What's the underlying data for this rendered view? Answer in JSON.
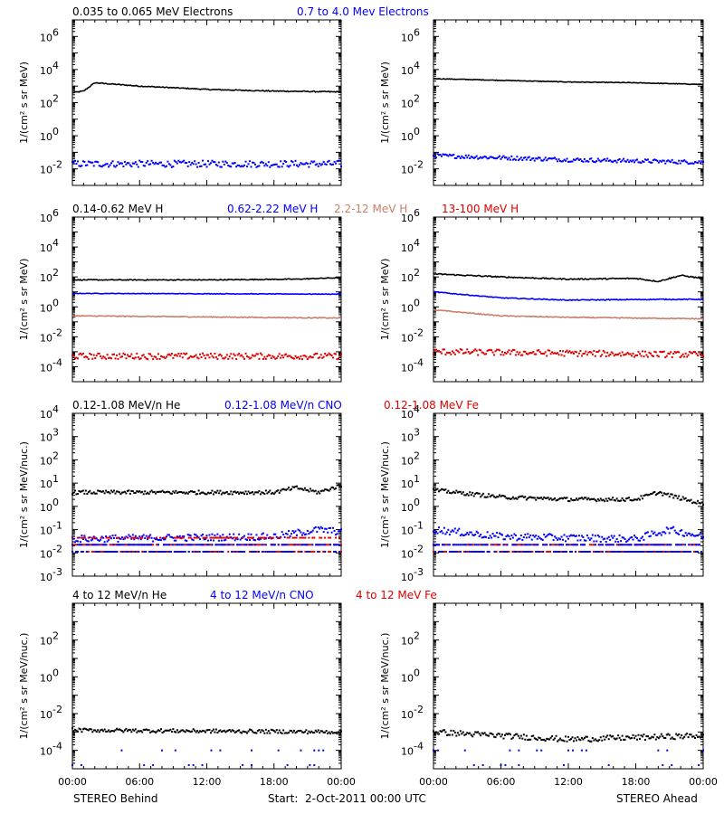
{
  "footer": {
    "left": "STEREO Behind",
    "center": "Start:  2-Oct-2011 00:00 UTC",
    "right": "STEREO Ahead"
  },
  "x_ticks": [
    "00:00",
    "06:00",
    "12:00",
    "18:00",
    "00:00"
  ],
  "row_headers": [
    [
      {
        "text": "0.035 to 0.065 MeV Electrons",
        "color": "#000000"
      },
      {
        "text": "0.7 to 4.0 Mev Electrons",
        "color": "#0000ff"
      }
    ],
    [
      {
        "text": "0.14-0.62 MeV H",
        "color": "#000000"
      },
      {
        "text": "0.62-2.22 MeV H",
        "color": "#0000ff"
      },
      {
        "text": "2.2-12 MeV H",
        "color": "#c8806a"
      },
      {
        "text": "13-100 MeV H",
        "color": "#dd0000"
      }
    ],
    [
      {
        "text": "0.12-1.08 MeV/n He",
        "color": "#000000"
      },
      {
        "text": "0.12-1.08 MeV/n CNO",
        "color": "#0000ff"
      },
      {
        "text": "0.12-1.08 MeV Fe",
        "color": "#dd0000"
      }
    ],
    [
      {
        "text": "4 to 12 MeV/n He",
        "color": "#000000"
      },
      {
        "text": "4 to 12 MeV/n CNO",
        "color": "#0000ff"
      },
      {
        "text": "4 to 12 MeV Fe",
        "color": "#dd0000"
      }
    ]
  ],
  "chart_data": [
    {
      "type": "scatter",
      "panel": "electrons-behind",
      "log_y": true,
      "ylabel": "1/(cm² s sr MeV)",
      "ylim_exp": [
        -3,
        7
      ],
      "yticks": [
        {
          "exp": -2,
          "label": "10",
          "sup": "-2"
        },
        {
          "exp": 0,
          "label": "10",
          "sup": "0"
        },
        {
          "exp": 2,
          "label": "10",
          "sup": "2"
        },
        {
          "exp": 4,
          "label": "10",
          "sup": "4"
        },
        {
          "exp": 6,
          "label": "10",
          "sup": "6"
        }
      ],
      "x_hours": [
        0,
        24
      ],
      "series": [
        {
          "color": "#000000",
          "style": "line",
          "profile": [
            [
              0,
              2.6
            ],
            [
              1,
              2.7
            ],
            [
              2,
              3.2
            ],
            [
              3,
              3.15
            ],
            [
              6,
              3.0
            ],
            [
              12,
              2.8
            ],
            [
              18,
              2.7
            ],
            [
              24,
              2.65
            ]
          ],
          "jitter": 0.03
        },
        {
          "color": "#0000ff",
          "style": "dots",
          "profile": [
            [
              0,
              -1.7
            ],
            [
              24,
              -1.7
            ]
          ],
          "jitter": 0.2
        }
      ]
    },
    {
      "type": "scatter",
      "panel": "electrons-ahead",
      "log_y": true,
      "ylabel": "1/(cm² s sr MeV)",
      "ylim_exp": [
        -3,
        7
      ],
      "yticks": [
        {
          "exp": -2,
          "label": "10",
          "sup": "-2"
        },
        {
          "exp": 0,
          "label": "10",
          "sup": "0"
        },
        {
          "exp": 2,
          "label": "10",
          "sup": "2"
        },
        {
          "exp": 4,
          "label": "10",
          "sup": "4"
        },
        {
          "exp": 6,
          "label": "10",
          "sup": "6"
        }
      ],
      "x_hours": [
        0,
        24
      ],
      "series": [
        {
          "color": "#000000",
          "style": "line",
          "profile": [
            [
              0,
              3.45
            ],
            [
              6,
              3.35
            ],
            [
              12,
              3.25
            ],
            [
              18,
              3.2
            ],
            [
              24,
              3.1
            ]
          ],
          "jitter": 0.02
        },
        {
          "color": "#0000ff",
          "style": "dots",
          "profile": [
            [
              0,
              -1.2
            ],
            [
              12,
              -1.45
            ],
            [
              24,
              -1.6
            ]
          ],
          "jitter": 0.12
        }
      ]
    },
    {
      "type": "scatter",
      "panel": "protons-behind",
      "log_y": true,
      "ylabel": "1/(cm² s sr MeV)",
      "ylim_exp": [
        -5,
        6
      ],
      "yticks": [
        {
          "exp": -4,
          "label": "10",
          "sup": "-4"
        },
        {
          "exp": -2,
          "label": "10",
          "sup": "-2"
        },
        {
          "exp": 0,
          "label": "10",
          "sup": "0"
        },
        {
          "exp": 2,
          "label": "10",
          "sup": "2"
        },
        {
          "exp": 4,
          "label": "10",
          "sup": "4"
        },
        {
          "exp": 6,
          "label": "10",
          "sup": "6"
        }
      ],
      "x_hours": [
        0,
        24
      ],
      "series": [
        {
          "color": "#000000",
          "style": "line",
          "profile": [
            [
              0,
              1.8
            ],
            [
              12,
              1.8
            ],
            [
              20,
              1.85
            ],
            [
              24,
              1.95
            ]
          ],
          "jitter": 0.03
        },
        {
          "color": "#0000ff",
          "style": "line",
          "profile": [
            [
              0,
              0.9
            ],
            [
              24,
              0.85
            ]
          ],
          "jitter": 0.02
        },
        {
          "color": "#c8806a",
          "style": "line",
          "profile": [
            [
              0,
              -0.6
            ],
            [
              24,
              -0.75
            ]
          ],
          "jitter": 0.03
        },
        {
          "color": "#dd0000",
          "style": "dots",
          "profile": [
            [
              0,
              -3.3
            ],
            [
              24,
              -3.3
            ]
          ],
          "jitter": 0.2
        }
      ]
    },
    {
      "type": "scatter",
      "panel": "protons-ahead",
      "log_y": true,
      "ylabel": "1/(cm² s sr MeV)",
      "ylim_exp": [
        -5,
        6
      ],
      "yticks": [
        {
          "exp": -4,
          "label": "10",
          "sup": "-4"
        },
        {
          "exp": -2,
          "label": "10",
          "sup": "-2"
        },
        {
          "exp": 0,
          "label": "10",
          "sup": "0"
        },
        {
          "exp": 2,
          "label": "10",
          "sup": "2"
        },
        {
          "exp": 4,
          "label": "10",
          "sup": "4"
        },
        {
          "exp": 6,
          "label": "10",
          "sup": "6"
        }
      ],
      "x_hours": [
        0,
        24
      ],
      "series": [
        {
          "color": "#000000",
          "style": "line",
          "profile": [
            [
              0,
              2.2
            ],
            [
              6,
              2.0
            ],
            [
              12,
              1.85
            ],
            [
              18,
              1.9
            ],
            [
              20,
              1.7
            ],
            [
              22,
              2.1
            ],
            [
              24,
              1.9
            ]
          ],
          "jitter": 0.04
        },
        {
          "color": "#0000ff",
          "style": "line",
          "profile": [
            [
              0,
              1.0
            ],
            [
              6,
              0.6
            ],
            [
              12,
              0.45
            ],
            [
              20,
              0.5
            ],
            [
              24,
              0.5
            ]
          ],
          "jitter": 0.03
        },
        {
          "color": "#c8806a",
          "style": "line",
          "profile": [
            [
              0,
              -0.2
            ],
            [
              6,
              -0.6
            ],
            [
              12,
              -0.7
            ],
            [
              24,
              -0.8
            ]
          ],
          "jitter": 0.03
        },
        {
          "color": "#dd0000",
          "style": "dots",
          "profile": [
            [
              0,
              -3.0
            ],
            [
              24,
              -3.2
            ]
          ],
          "jitter": 0.2
        }
      ]
    },
    {
      "type": "scatter",
      "panel": "ions-low-behind",
      "log_y": true,
      "ylabel": "1/(cm² s sr MeV/nuc.)",
      "ylim_exp": [
        -3,
        4
      ],
      "yticks": [
        {
          "exp": -3,
          "label": "10",
          "sup": "-3"
        },
        {
          "exp": -2,
          "label": "10",
          "sup": "-2"
        },
        {
          "exp": -1,
          "label": "10",
          "sup": "-1"
        },
        {
          "exp": 0,
          "label": "10",
          "sup": "0"
        },
        {
          "exp": 1,
          "label": "10",
          "sup": "1"
        },
        {
          "exp": 2,
          "label": "10",
          "sup": "2"
        },
        {
          "exp": 3,
          "label": "10",
          "sup": "3"
        },
        {
          "exp": 4,
          "label": "10",
          "sup": "4"
        }
      ],
      "x_hours": [
        0,
        24
      ],
      "series": [
        {
          "color": "#000000",
          "style": "dots",
          "profile": [
            [
              0,
              0.6
            ],
            [
              18,
              0.6
            ],
            [
              20,
              0.8
            ],
            [
              22,
              0.6
            ],
            [
              24,
              0.9
            ]
          ],
          "jitter": 0.08
        },
        {
          "color": "#0000ff",
          "style": "dots",
          "profile": [
            [
              0,
              -1.4
            ],
            [
              18,
              -1.3
            ],
            [
              22,
              -1.0
            ],
            [
              24,
              -1.1
            ]
          ],
          "jitter": 0.15
        },
        {
          "color": "#dd0000",
          "style": "band",
          "levels": [
            -1.35,
            -1.65,
            -1.95
          ]
        },
        {
          "color": "#0000ff",
          "style": "band",
          "levels": [
            -1.65,
            -1.95
          ]
        }
      ]
    },
    {
      "type": "scatter",
      "panel": "ions-low-ahead",
      "log_y": true,
      "ylabel": "1/(cm² s sr MeV/nuc.)",
      "ylim_exp": [
        -3,
        4
      ],
      "yticks": [
        {
          "exp": -3,
          "label": "10",
          "sup": "-3"
        },
        {
          "exp": -2,
          "label": "10",
          "sup": "-2"
        },
        {
          "exp": -1,
          "label": "10",
          "sup": "-1"
        },
        {
          "exp": 0,
          "label": "10",
          "sup": "0"
        },
        {
          "exp": 1,
          "label": "10",
          "sup": "1"
        },
        {
          "exp": 2,
          "label": "10",
          "sup": "2"
        },
        {
          "exp": 3,
          "label": "10",
          "sup": "3"
        },
        {
          "exp": 4,
          "label": "10",
          "sup": "4"
        }
      ],
      "x_hours": [
        0,
        24
      ],
      "series": [
        {
          "color": "#000000",
          "style": "dots",
          "profile": [
            [
              0,
              0.7
            ],
            [
              6,
              0.4
            ],
            [
              12,
              0.3
            ],
            [
              18,
              0.3
            ],
            [
              20,
              0.6
            ],
            [
              24,
              0.1
            ]
          ],
          "jitter": 0.08
        },
        {
          "color": "#0000ff",
          "style": "dots",
          "profile": [
            [
              0,
              -1.0
            ],
            [
              6,
              -1.3
            ],
            [
              18,
              -1.4
            ],
            [
              21,
              -1.0
            ],
            [
              24,
              -1.3
            ]
          ],
          "jitter": 0.15
        },
        {
          "color": "#dd0000",
          "style": "band",
          "levels": [
            -1.65,
            -1.95
          ]
        },
        {
          "color": "#0000ff",
          "style": "band",
          "levels": [
            -1.65,
            -1.95
          ]
        }
      ]
    },
    {
      "type": "scatter",
      "panel": "ions-high-behind",
      "log_y": true,
      "ylabel": "1/(cm² s sr MeV/nuc.)",
      "ylim_exp": [
        -5,
        4
      ],
      "yticks": [
        {
          "exp": -4,
          "label": "10",
          "sup": "-4"
        },
        {
          "exp": -2,
          "label": "10",
          "sup": "-2"
        },
        {
          "exp": 0,
          "label": "10",
          "sup": "0"
        },
        {
          "exp": 2,
          "label": "10",
          "sup": "2"
        }
      ],
      "x_hours": [
        0,
        24
      ],
      "series": [
        {
          "color": "#000000",
          "style": "dots",
          "profile": [
            [
              0,
              -2.9
            ],
            [
              24,
              -3.0
            ]
          ],
          "jitter": 0.1
        },
        {
          "color": "#0000ff",
          "style": "sparse",
          "levels": [
            -4.0,
            -4.8
          ]
        }
      ]
    },
    {
      "type": "scatter",
      "panel": "ions-high-ahead",
      "log_y": true,
      "ylabel": "1/(cm² s sr MeV/nuc.)",
      "ylim_exp": [
        -5,
        4
      ],
      "yticks": [
        {
          "exp": -4,
          "label": "10",
          "sup": "-4"
        },
        {
          "exp": -2,
          "label": "10",
          "sup": "-2"
        },
        {
          "exp": 0,
          "label": "10",
          "sup": "0"
        },
        {
          "exp": 2,
          "label": "10",
          "sup": "2"
        }
      ],
      "x_hours": [
        0,
        24
      ],
      "series": [
        {
          "color": "#000000",
          "style": "dots",
          "profile": [
            [
              0,
              -3.0
            ],
            [
              6,
              -3.2
            ],
            [
              12,
              -3.4
            ],
            [
              24,
              -3.2
            ]
          ],
          "jitter": 0.15
        },
        {
          "color": "#0000ff",
          "style": "sparse",
          "levels": [
            -4.0,
            -4.8
          ]
        }
      ]
    }
  ]
}
